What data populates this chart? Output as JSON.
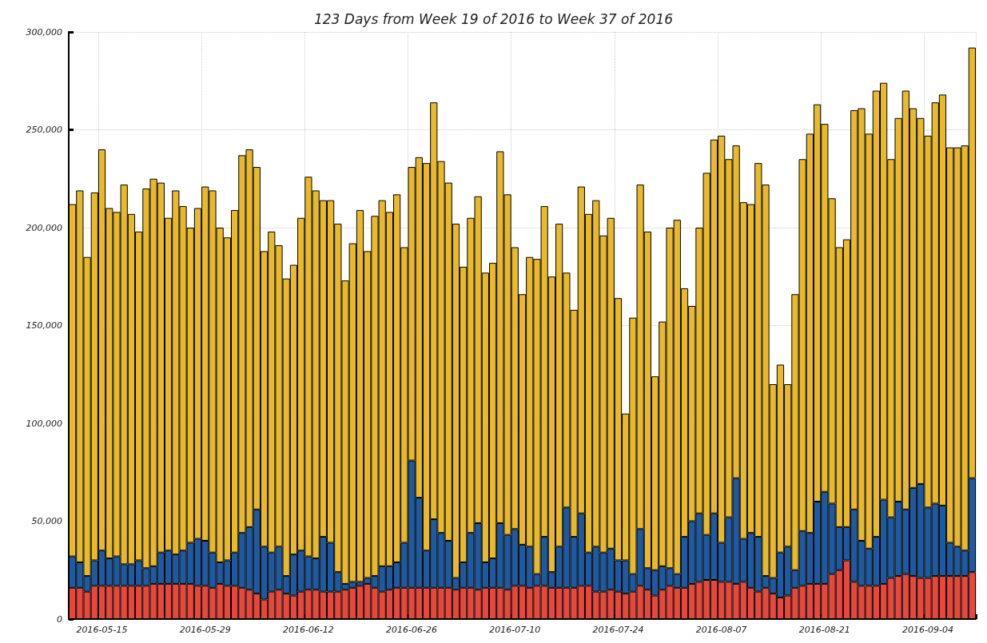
{
  "chart_data": {
    "type": "bar",
    "title": "123 Days from Week 19 of 2016 to Week 37 of 2016",
    "stacked": true,
    "grid": true,
    "categories": [
      null,
      null,
      null,
      null,
      "2016-05-15",
      null,
      null,
      null,
      null,
      null,
      null,
      null,
      null,
      null,
      null,
      null,
      null,
      null,
      "2016-05-29",
      null,
      null,
      null,
      null,
      null,
      null,
      null,
      null,
      null,
      null,
      null,
      null,
      null,
      "2016-06-12",
      null,
      null,
      null,
      null,
      null,
      null,
      null,
      null,
      null,
      null,
      null,
      null,
      null,
      "2016-06-26",
      null,
      null,
      null,
      null,
      null,
      null,
      null,
      null,
      null,
      null,
      null,
      null,
      null,
      "2016-07-10",
      null,
      null,
      null,
      null,
      null,
      null,
      null,
      null,
      null,
      null,
      null,
      null,
      null,
      "2016-07-24",
      null,
      null,
      null,
      null,
      null,
      null,
      null,
      null,
      null,
      null,
      null,
      null,
      null,
      "2016-08-07",
      null,
      null,
      null,
      null,
      null,
      null,
      null,
      null,
      null,
      null,
      null,
      null,
      null,
      "2016-08-21",
      null,
      null,
      null,
      null,
      null,
      null,
      null,
      null,
      null,
      null,
      null,
      null,
      null,
      "2016-09-04",
      null,
      null,
      null,
      null,
      null,
      null
    ],
    "ylim": [
      0,
      300000
    ],
    "yticks": [
      {
        "value": 0,
        "label": "0"
      },
      {
        "value": 50000,
        "label": "50,000"
      },
      {
        "value": 100000,
        "label": "100,000"
      },
      {
        "value": 150000,
        "label": "150,000"
      },
      {
        "value": 200000,
        "label": "200,000"
      },
      {
        "value": 250000,
        "label": "250,000"
      },
      {
        "value": 300000,
        "label": "300,000"
      }
    ],
    "series": [
      {
        "color": "#e8483c",
        "values": [
          16000,
          16000,
          14000,
          17000,
          17000,
          17000,
          17000,
          17000,
          17000,
          17000,
          17000,
          18000,
          18000,
          18000,
          18000,
          18000,
          18000,
          17000,
          17000,
          16000,
          18000,
          17000,
          17000,
          16000,
          15000,
          13000,
          10000,
          14000,
          15000,
          13000,
          12000,
          14000,
          15000,
          15000,
          14000,
          14000,
          14000,
          15000,
          16000,
          17000,
          18000,
          16000,
          14000,
          15000,
          16000,
          16000,
          16000,
          16000,
          16000,
          16000,
          16000,
          16000,
          15000,
          16000,
          16000,
          15000,
          16000,
          16000,
          16000,
          15000,
          17000,
          17000,
          16000,
          17000,
          17000,
          16000,
          16000,
          16000,
          16000,
          17000,
          17000,
          14000,
          14000,
          15000,
          14000,
          13000,
          14000,
          17000,
          15000,
          12000,
          15000,
          17000,
          16000,
          16000,
          18000,
          19000,
          20000,
          20000,
          19000,
          19000,
          18000,
          19000,
          16000,
          14000,
          16000,
          13000,
          11000,
          12000,
          16000,
          17000,
          18000,
          18000,
          18000,
          23000,
          25000,
          30000,
          19000,
          17000,
          17000,
          17000,
          18000,
          21000,
          22000,
          23000,
          22000,
          21000,
          21000,
          22000,
          22000,
          22000,
          22000,
          22000,
          24000
        ]
      },
      {
        "color": "#1f5aa0",
        "values": [
          16000,
          13000,
          8000,
          13000,
          18000,
          14000,
          15000,
          11000,
          11000,
          13000,
          9000,
          9000,
          16000,
          17000,
          15000,
          17000,
          21000,
          24000,
          23000,
          18000,
          11000,
          13000,
          17000,
          28000,
          32000,
          43000,
          27000,
          20000,
          22000,
          9000,
          21000,
          21000,
          17000,
          16000,
          28000,
          25000,
          10000,
          3000,
          3000,
          2000,
          3000,
          6000,
          13000,
          12000,
          13000,
          23000,
          65000,
          46000,
          19000,
          35000,
          28000,
          24000,
          6000,
          13000,
          28000,
          34000,
          13000,
          15000,
          33000,
          28000,
          29000,
          21000,
          21000,
          6000,
          25000,
          8000,
          21000,
          41000,
          26000,
          37000,
          17000,
          23000,
          20000,
          21000,
          16000,
          17000,
          9000,
          29000,
          11000,
          13000,
          12000,
          9000,
          7000,
          26000,
          32000,
          35000,
          23000,
          34000,
          20000,
          33000,
          54000,
          22000,
          28000,
          28000,
          6000,
          8000,
          23000,
          25000,
          9000,
          28000,
          26000,
          42000,
          47000,
          36000,
          22000,
          17000,
          37000,
          23000,
          19000,
          25000,
          43000,
          31000,
          38000,
          33000,
          45000,
          48000,
          36000,
          37000,
          36000,
          17000,
          15000,
          13000,
          48000
        ]
      },
      {
        "color": "#e8b92c",
        "values": [
          180000,
          190000,
          163000,
          188000,
          205000,
          179000,
          176000,
          194000,
          179000,
          168000,
          194000,
          198000,
          189000,
          170000,
          186000,
          176000,
          161000,
          169000,
          181000,
          185000,
          171000,
          165000,
          175000,
          193000,
          193000,
          175000,
          151000,
          164000,
          154000,
          152000,
          148000,
          170000,
          194000,
          188000,
          172000,
          175000,
          178000,
          155000,
          173000,
          190000,
          167000,
          184000,
          187000,
          181000,
          188000,
          151000,
          150000,
          174000,
          198000,
          213000,
          190000,
          183000,
          181000,
          151000,
          161000,
          167000,
          148000,
          151000,
          190000,
          174000,
          144000,
          128000,
          148000,
          161000,
          169000,
          151000,
          165000,
          120000,
          116000,
          167000,
          173000,
          177000,
          162000,
          169000,
          134000,
          75000,
          131000,
          176000,
          172000,
          99000,
          125000,
          174000,
          181000,
          127000,
          110000,
          146000,
          185000,
          191000,
          208000,
          183000,
          170000,
          172000,
          168000,
          191000,
          200000,
          99000,
          96000,
          83000,
          141000,
          190000,
          204000,
          203000,
          188000,
          156000,
          143000,
          147000,
          204000,
          221000,
          212000,
          228000,
          213000,
          183000,
          196000,
          214000,
          194000,
          187000,
          190000,
          205000,
          210000,
          202000,
          204000,
          207000,
          220000
        ]
      }
    ]
  }
}
